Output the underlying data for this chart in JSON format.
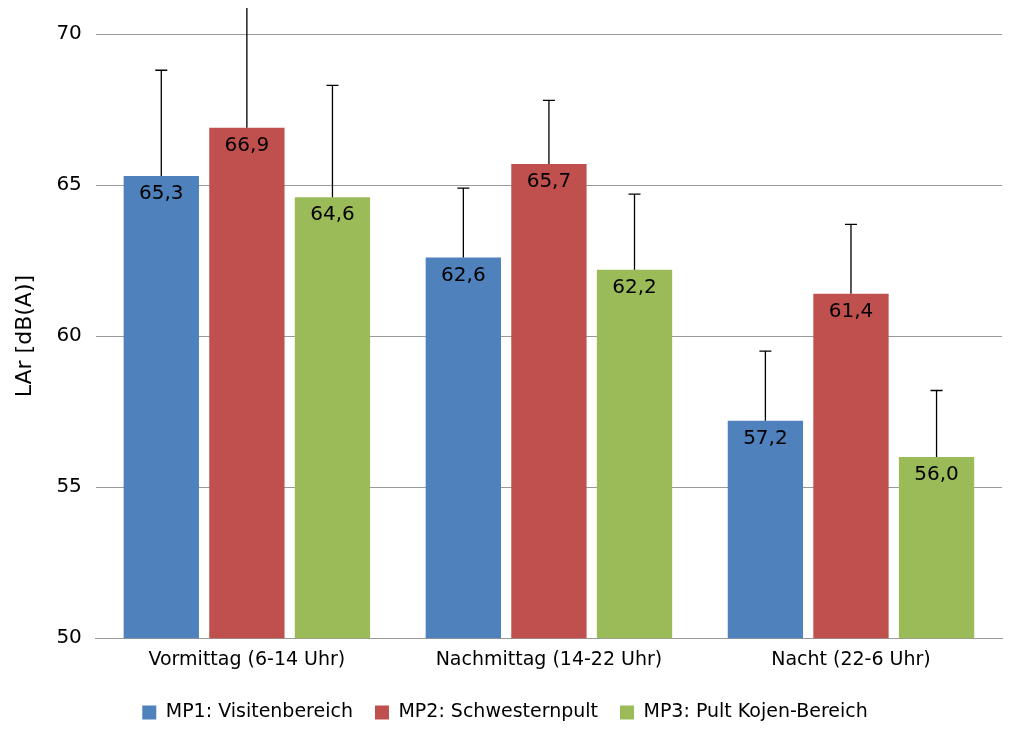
{
  "chart_data": {
    "type": "bar",
    "ylabel": "LAr [dB(A)]",
    "categories": [
      "Vormittag (6-14 Uhr)",
      "Nachmittag (14-22 Uhr)",
      "Nacht (22-6 Uhr)"
    ],
    "series": [
      {
        "name": "MP1: Visitenbereich",
        "color": "#4f81bd",
        "values": [
          65.3,
          62.6,
          57.2
        ],
        "errors": [
          [
            65.3,
            68.8
          ],
          [
            62.6,
            64.9
          ],
          [
            57.2,
            59.5
          ]
        ]
      },
      {
        "name": "MP2: Schwesternpult",
        "color": "#c0504d",
        "values": [
          66.9,
          65.7,
          61.4
        ],
        "errors": [
          [
            66.9,
            70.9
          ],
          [
            65.7,
            67.8
          ],
          [
            61.4,
            63.7
          ]
        ]
      },
      {
        "name": "MP3: Pult Kojen-Bereich",
        "color": "#9bbb59",
        "values": [
          64.6,
          62.2,
          56.0
        ],
        "errors": [
          [
            64.6,
            68.3
          ],
          [
            62.2,
            64.7
          ],
          [
            56.0,
            58.2
          ]
        ]
      }
    ],
    "value_labels": [
      [
        "65,3",
        "62,6",
        "57,2"
      ],
      [
        "66,9",
        "65,7",
        "61,4"
      ],
      [
        "64,6",
        "62,2",
        "56,0"
      ]
    ],
    "ylim": [
      50,
      70
    ],
    "yticks": [
      50,
      55,
      60,
      65,
      70
    ],
    "grid": "y",
    "legend": "bottom"
  }
}
